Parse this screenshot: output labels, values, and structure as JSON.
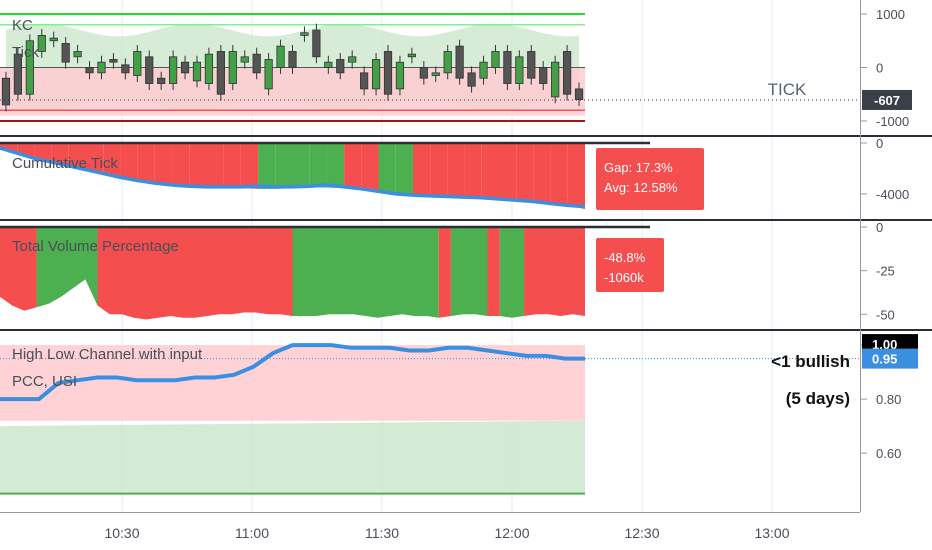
{
  "colors": {
    "up": "#43a047",
    "down": "#f5f5f5",
    "bull_fill": "#4caf50",
    "bear_fill": "#f44e4e",
    "avg_line": "#3b8fe0",
    "kc_band": "#c8e6c9",
    "neg_band": "#ffcdd2",
    "price_label_bg": "#3b8fe0",
    "grid": "#e8eaf0",
    "text": "#4a4e5a"
  },
  "watermark": "TICK",
  "chart_data": [
    {
      "type": "candlestick",
      "title": "KC",
      "subtitle": "Tick",
      "y_ticks": [
        "1000",
        "0",
        "-1000"
      ],
      "last_value_label": "-607",
      "levels": [
        1000,
        800,
        -800,
        -1000
      ],
      "open": [
        -200,
        250,
        -500,
        300,
        500,
        450,
        200,
        0,
        -100,
        150,
        50,
        -150,
        200,
        -200,
        -300,
        100,
        -250,
        -300,
        300,
        -300,
        100,
        250,
        -400,
        0,
        300,
        600,
        700,
        0,
        150,
        100,
        -100,
        -400,
        300,
        -400,
        200,
        0,
        -150,
        -100,
        400,
        -100,
        -200,
        0,
        300,
        -300,
        300,
        0,
        -550,
        300,
        -400
      ],
      "close": [
        -700,
        -500,
        500,
        600,
        550,
        100,
        300,
        -100,
        100,
        100,
        -100,
        300,
        -300,
        -300,
        200,
        -100,
        100,
        250,
        -500,
        300,
        200,
        -100,
        150,
        400,
        0,
        650,
        200,
        100,
        -100,
        200,
        -400,
        150,
        -500,
        100,
        250,
        -200,
        -100,
        300,
        -200,
        -350,
        100,
        300,
        -300,
        200,
        -200,
        -300,
        100,
        -500,
        -600
      ]
    },
    {
      "type": "area",
      "title": "Cumulative Tick",
      "y_ticks": [
        "0",
        "-4000"
      ],
      "series": [
        {
          "values": [
            -300,
            -700,
            -1000,
            -1300,
            -1600,
            -1900,
            -2100,
            -2300,
            -2500,
            -2700,
            -2900,
            -3100,
            -3300,
            -3450,
            -3550,
            -3600,
            -3600,
            -3550,
            -3500,
            -3500,
            -3550,
            -3600,
            -3650,
            -3700,
            -3750,
            -3800,
            -3850,
            -3900,
            -4000,
            -4100,
            -4200,
            -4300,
            -4500,
            -4800,
            -5200
          ]
        },
        {
          "values": [
            -400,
            -800,
            -1200,
            -1500,
            -1800,
            -2100,
            -2400,
            -2700,
            -2950,
            -3150,
            -3300,
            -3400,
            -3450,
            -3450,
            -3450,
            -3400,
            -3450,
            -3450,
            -3400,
            -3300,
            -3450,
            -3600,
            -3800,
            -4000,
            -4100,
            -4150,
            -4200,
            -4250,
            -4300,
            -4400,
            -4500,
            -4600,
            -4750,
            -4900,
            -5000
          ]
        }
      ],
      "callout": [
        "Gap: 17.3%",
        "Avg: 12.58%"
      ]
    },
    {
      "type": "area",
      "title": "Total Volume Percentage",
      "y_ticks": [
        "0",
        "-25",
        "-50"
      ],
      "values": [
        -40,
        -45,
        -48,
        -46,
        -44,
        -40,
        -35,
        -30,
        -45,
        -50,
        -50,
        -52,
        -53,
        -52,
        -51,
        -52,
        -52,
        -51,
        -50,
        -50,
        -49,
        -49,
        -50,
        -50,
        -51,
        -51,
        -51,
        -50,
        -50,
        -50,
        -51,
        -52,
        -51,
        -50,
        -51,
        -51,
        -52,
        -51,
        -50,
        -50,
        -51,
        -51,
        -52,
        -51,
        -50,
        -50,
        -51,
        -50,
        -51
      ],
      "callout": [
        "-48.8%",
        "-1060k"
      ]
    },
    {
      "type": "line",
      "title": "High Low Channel with input",
      "subtitle": "PCC, USI",
      "y_ticks": [
        "1.00",
        "0.80",
        "0.60"
      ],
      "last_value_label": "0.95",
      "top_value_label": "1.00",
      "values": [
        0.8,
        0.8,
        0.8,
        0.86,
        0.87,
        0.88,
        0.88,
        0.87,
        0.87,
        0.87,
        0.88,
        0.88,
        0.89,
        0.92,
        0.97,
        1.0,
        1.0,
        1.0,
        0.99,
        0.99,
        0.99,
        0.98,
        0.98,
        0.99,
        0.99,
        0.98,
        0.97,
        0.96,
        0.96,
        0.95,
        0.95
      ],
      "annotation": [
        "<1 bullish",
        "(5 days)"
      ]
    }
  ],
  "x_axis": {
    "ticks": [
      "10:30",
      "11:00",
      "11:30",
      "12:00",
      "12:30",
      "13:00"
    ]
  }
}
